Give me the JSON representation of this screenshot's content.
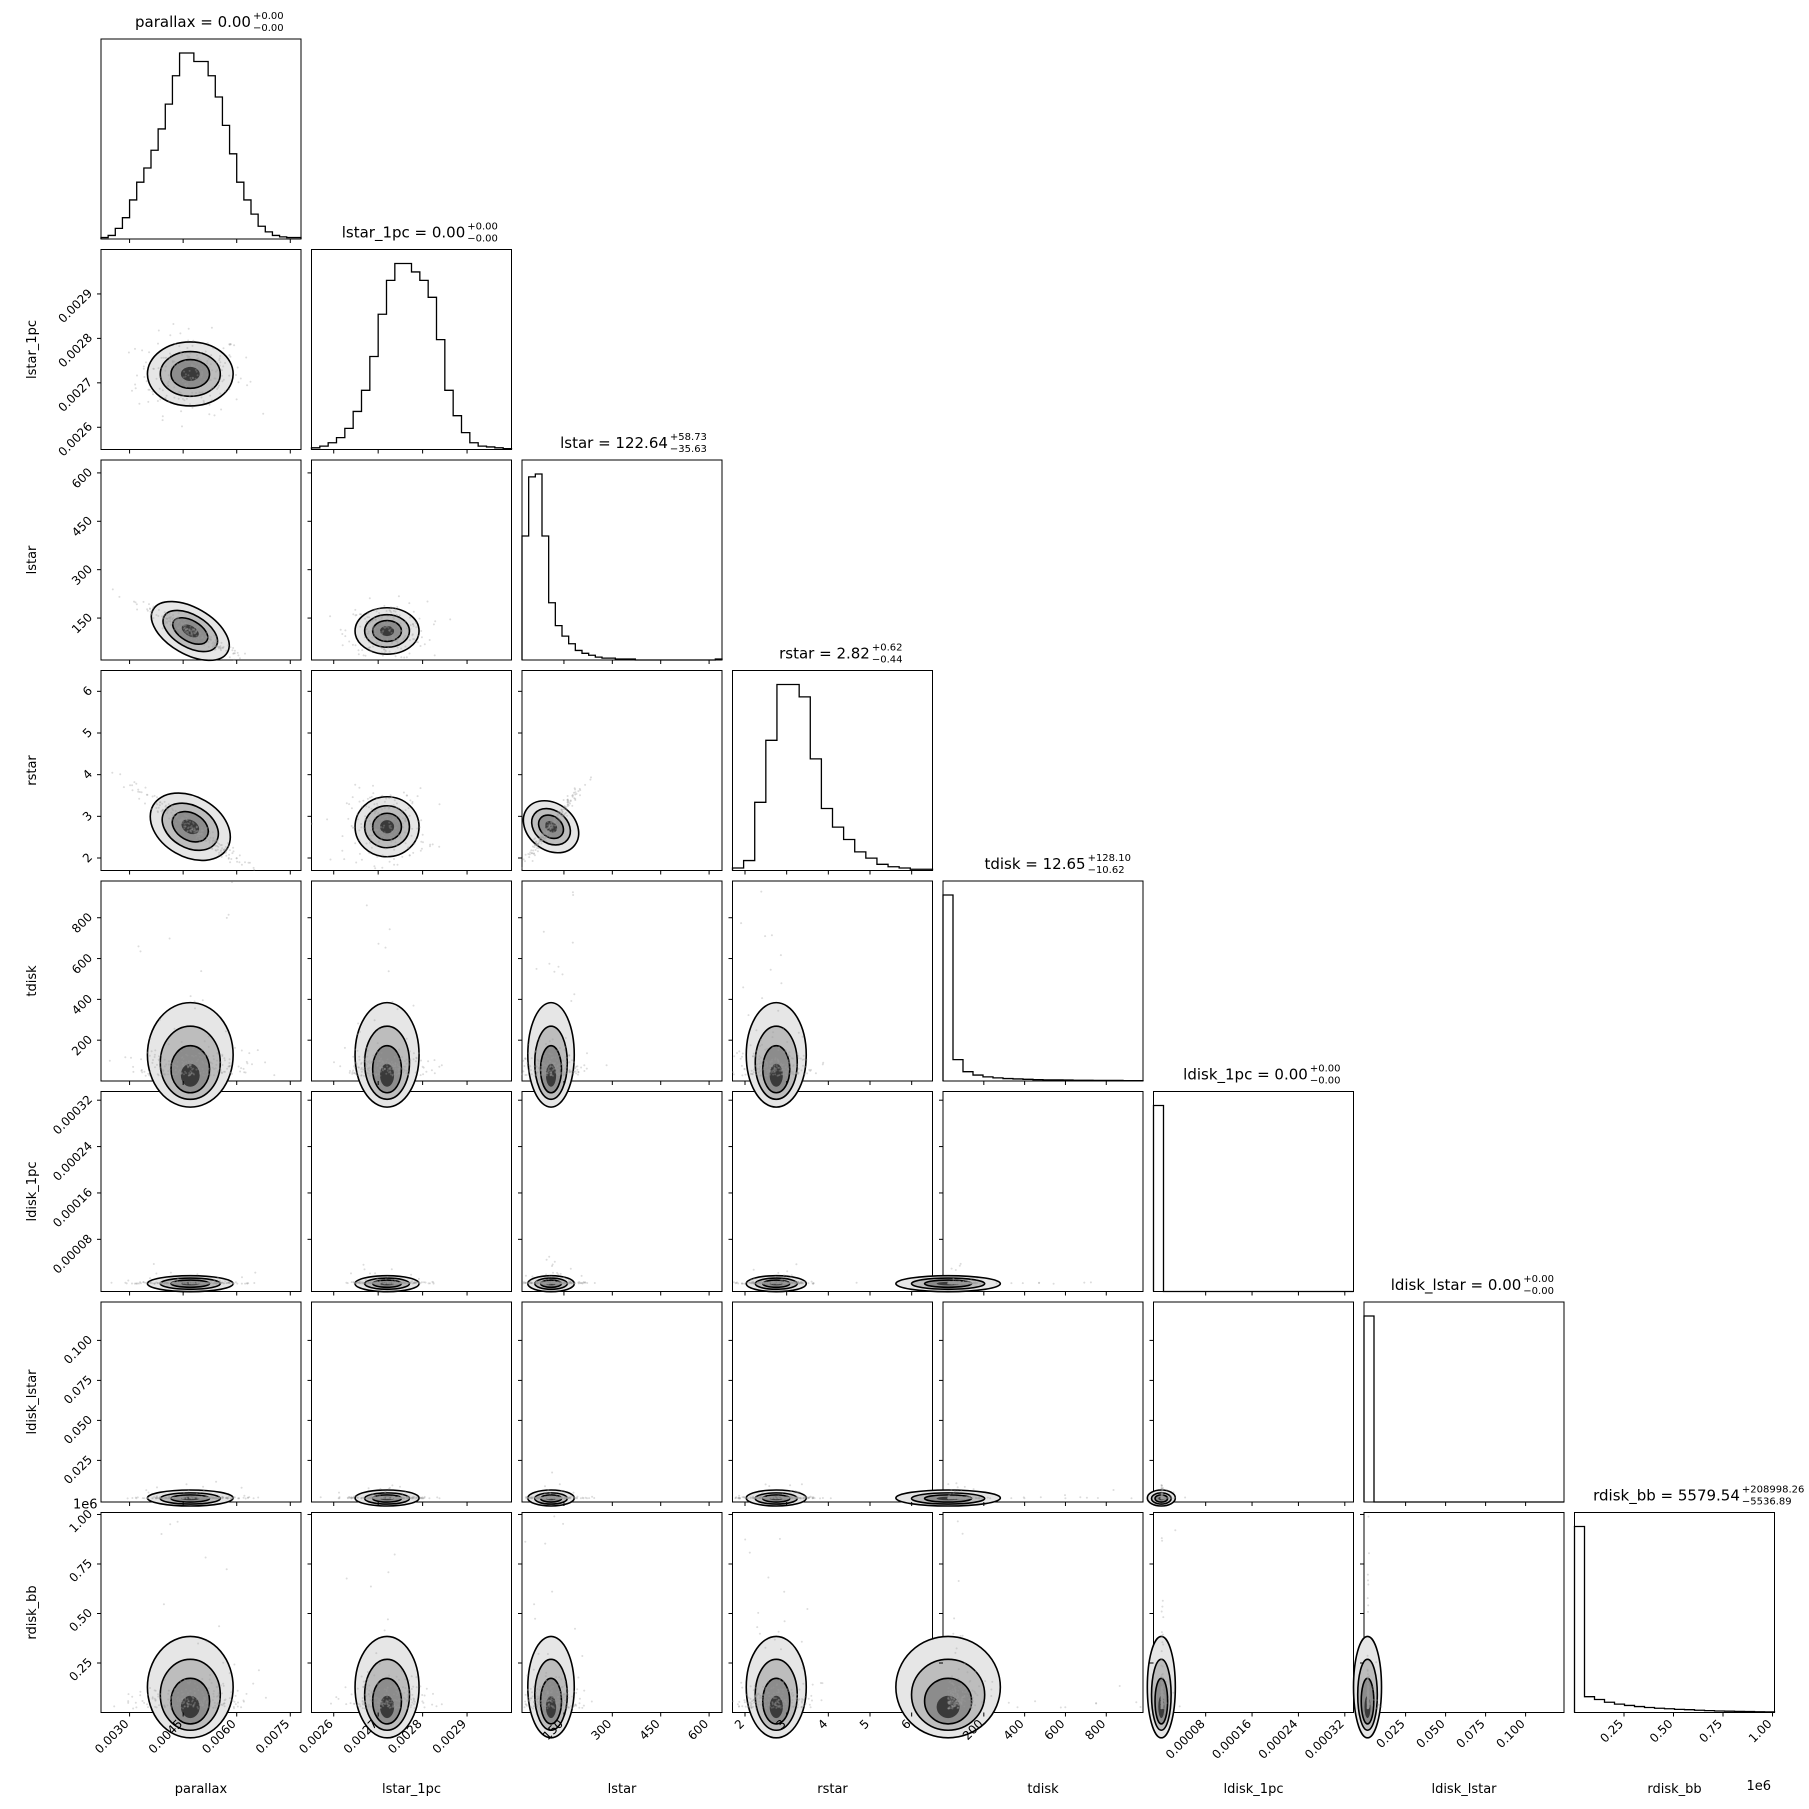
{
  "chart_data": {
    "type": "corner",
    "parameters": [
      "parallax",
      "lstar_1pc",
      "lstar",
      "rstar",
      "tdisk",
      "ldisk_1pc",
      "ldisk_lstar",
      "rdisk_bb"
    ],
    "titles": [
      {
        "param": "parallax",
        "text": "parallax = 0.00",
        "upper": "+0.00",
        "lower": "−0.00"
      },
      {
        "param": "lstar_1pc",
        "text": "lstar_1pc = 0.00",
        "upper": "+0.00",
        "lower": "−0.00"
      },
      {
        "param": "lstar",
        "text": "lstar = 122.64",
        "upper": "+58.73",
        "lower": "−35.63"
      },
      {
        "param": "rstar",
        "text": "rstar = 2.82",
        "upper": "+0.62",
        "lower": "−0.44"
      },
      {
        "param": "tdisk",
        "text": "tdisk = 12.65",
        "upper": "+128.10",
        "lower": "−10.62"
      },
      {
        "param": "ldisk_1pc",
        "text": "ldisk_1pc = 0.00",
        "upper": "+0.00",
        "lower": "−0.00"
      },
      {
        "param": "ldisk_lstar",
        "text": "ldisk_lstar = 0.00",
        "upper": "+0.00",
        "lower": "−0.00"
      },
      {
        "param": "rdisk_bb",
        "text": "rdisk_bb = 5579.54",
        "upper": "+208998.26",
        "lower": "−5536.89"
      }
    ],
    "axis_ranges": [
      [
        0.0022,
        0.0078
      ],
      [
        0.00255,
        0.003
      ],
      [
        20,
        640
      ],
      [
        1.7,
        6.5
      ],
      [
        0,
        980
      ],
      [
        -1e-05,
        0.000335
      ],
      [
        -0.001,
        0.124
      ],
      [
        0,
        1010000
      ]
    ],
    "ticks": [
      {
        "values": [
          0.003,
          0.0045,
          0.006,
          0.0075
        ],
        "labels": [
          "0.0030",
          "0.0045",
          "0.0060",
          "0.0075"
        ]
      },
      {
        "values": [
          0.0026,
          0.0027,
          0.0028,
          0.0029
        ],
        "labels": [
          "0.0026",
          "0.0027",
          "0.0028",
          "0.0029"
        ]
      },
      {
        "values": [
          150,
          300,
          450,
          600
        ],
        "labels": [
          "150",
          "300",
          "450",
          "600"
        ]
      },
      {
        "values": [
          2,
          3,
          4,
          5,
          6
        ],
        "labels": [
          "2",
          "3",
          "4",
          "5",
          "6"
        ]
      },
      {
        "values": [
          200,
          400,
          600,
          800
        ],
        "labels": [
          "200",
          "400",
          "600",
          "800"
        ]
      },
      {
        "values": [
          8e-05,
          0.00016,
          0.00024,
          0.00032
        ],
        "labels": [
          "0.00008",
          "0.00016",
          "0.00024",
          "0.00032"
        ]
      },
      {
        "values": [
          0.025,
          0.05,
          0.075,
          0.1
        ],
        "labels": [
          "0.025",
          "0.050",
          "0.075",
          "0.100"
        ]
      },
      {
        "values": [
          250000,
          500000,
          750000,
          1000000
        ],
        "labels": [
          "0.25",
          "0.50",
          "0.75",
          "1.00"
        ]
      }
    ],
    "offset_label": "1e6",
    "histograms": [
      [
        2,
        5,
        15,
        30,
        55,
        80,
        100,
        125,
        155,
        190,
        230,
        262,
        262,
        250,
        250,
        230,
        200,
        160,
        120,
        80,
        55,
        35,
        18,
        10,
        5,
        3,
        2,
        2
      ],
      [
        2,
        4,
        8,
        14,
        25,
        45,
        70,
        110,
        160,
        200,
        220,
        220,
        210,
        200,
        180,
        130,
        70,
        40,
        20,
        8,
        4,
        3,
        2,
        1
      ],
      [
        130,
        192,
        195,
        130,
        60,
        36,
        25,
        17,
        10,
        7,
        5,
        3,
        2,
        2,
        1,
        1,
        1,
        0,
        0,
        0,
        0,
        0,
        0,
        0,
        0,
        0,
        0,
        0,
        0,
        1
      ],
      [
        2,
        8,
        55,
        105,
        150,
        150,
        140,
        90,
        50,
        35,
        25,
        15,
        10,
        5,
        3,
        2,
        1,
        1
      ],
      [
        1000,
        115,
        50,
        32,
        22,
        17,
        13,
        11,
        9,
        7,
        6,
        6,
        5,
        4,
        4,
        3,
        3,
        3,
        2,
        2
      ],
      [
        800,
        0,
        0,
        0,
        0,
        0,
        0,
        0,
        0,
        0,
        0,
        0,
        0,
        0,
        0,
        0,
        0,
        0,
        0,
        0
      ],
      [
        800,
        0,
        0,
        0,
        0,
        0,
        0,
        0,
        0,
        0,
        0,
        0,
        0,
        0,
        0,
        0,
        0,
        0,
        0,
        0
      ],
      [
        1000,
        85,
        70,
        55,
        45,
        38,
        32,
        27,
        23,
        20,
        17,
        15,
        12,
        10,
        8,
        7,
        6,
        5,
        4,
        3
      ]
    ]
  }
}
